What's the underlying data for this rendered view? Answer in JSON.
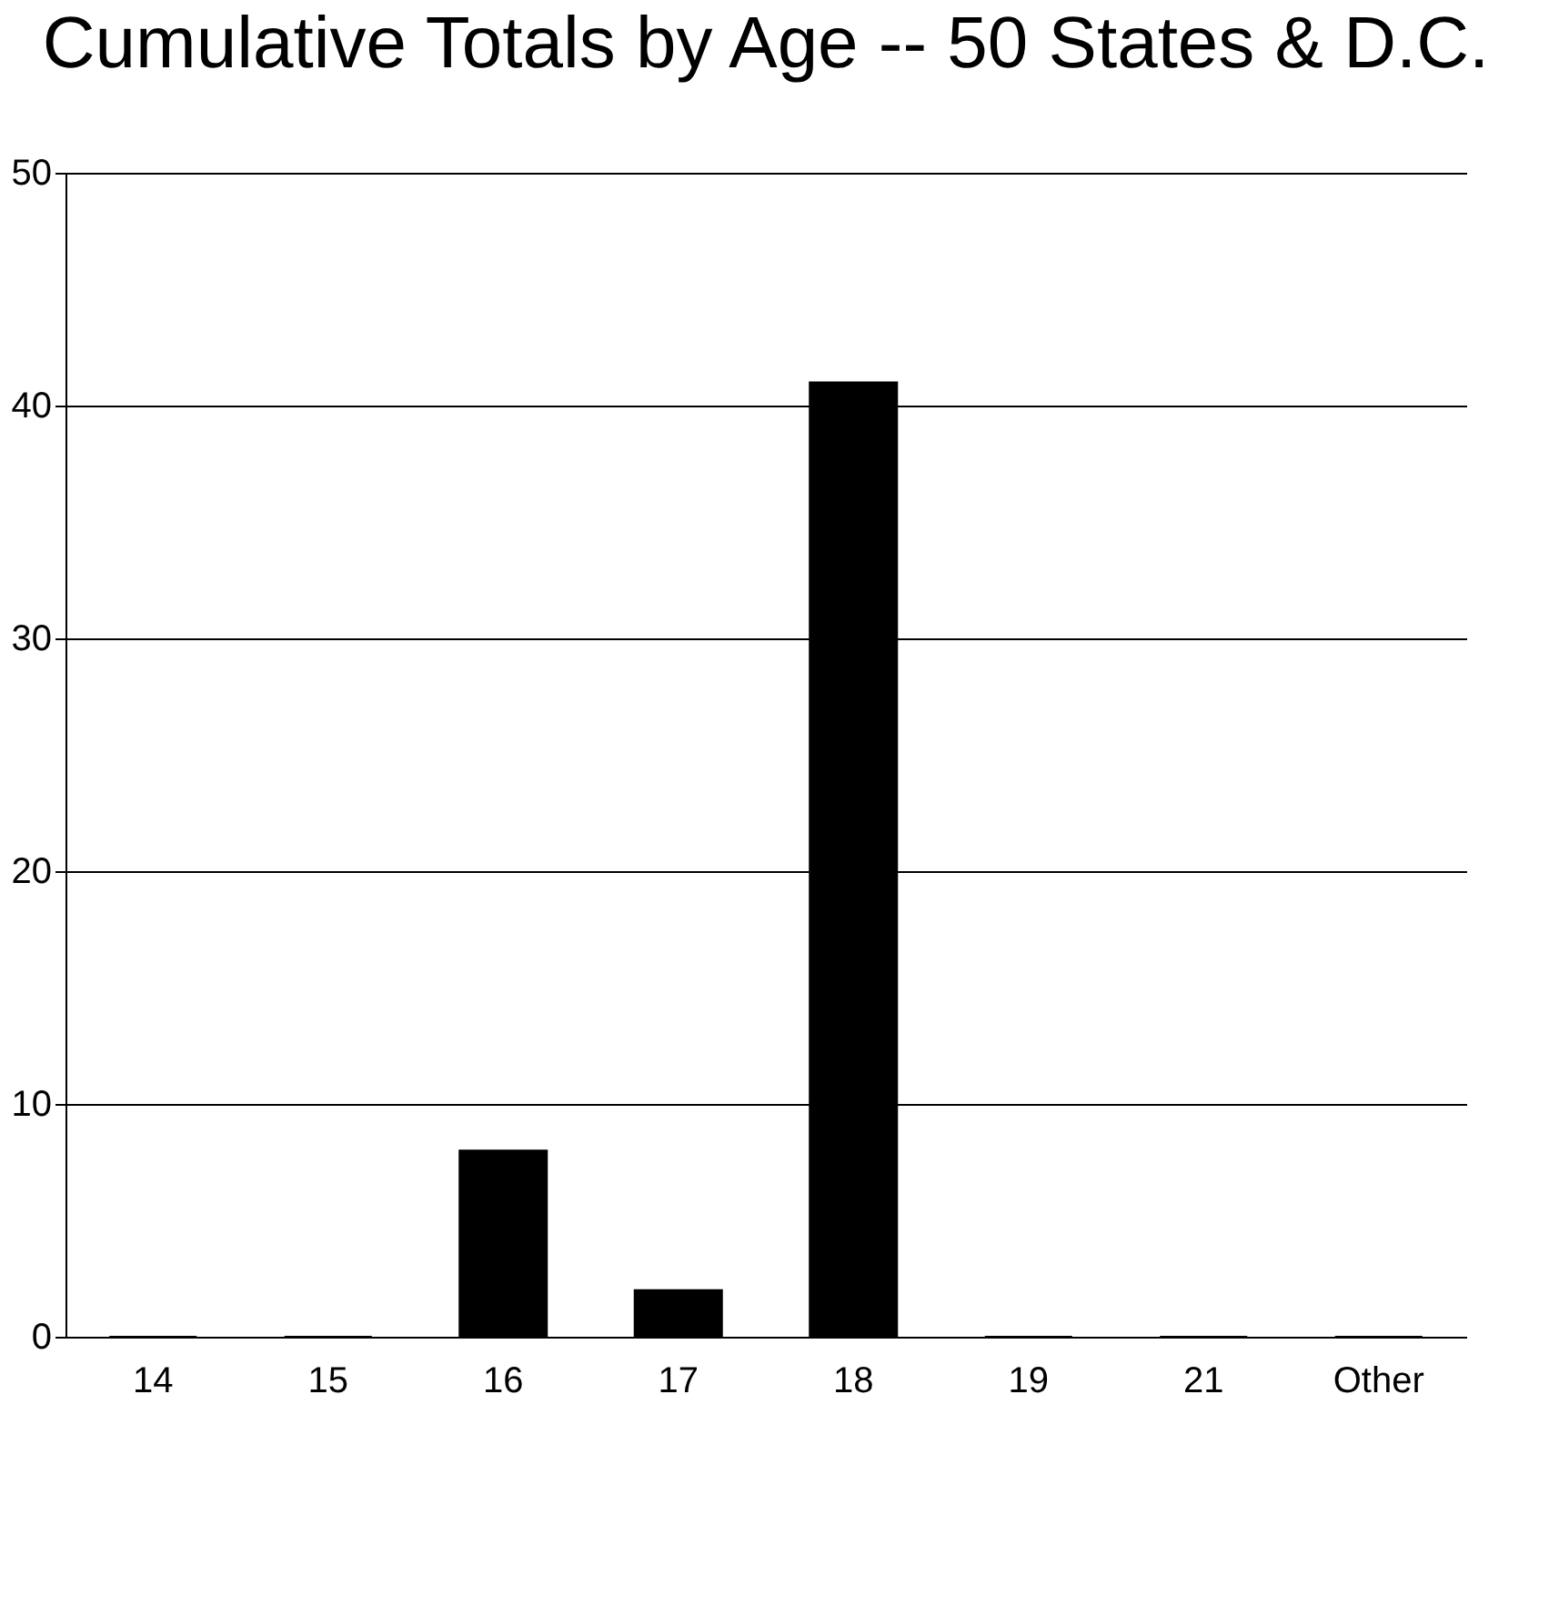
{
  "chart_data": {
    "type": "bar",
    "title": "Cumulative Totals by Age -- 50 States & D.C.",
    "categories": [
      "14",
      "15",
      "16",
      "17",
      "18",
      "19",
      "21",
      "Other"
    ],
    "values": [
      0,
      0,
      8,
      2,
      41,
      0,
      0,
      0
    ],
    "color": "#000000",
    "ylim": [
      0,
      50
    ],
    "yticks": [
      0,
      10,
      20,
      30,
      40,
      50
    ],
    "grid": "y"
  }
}
